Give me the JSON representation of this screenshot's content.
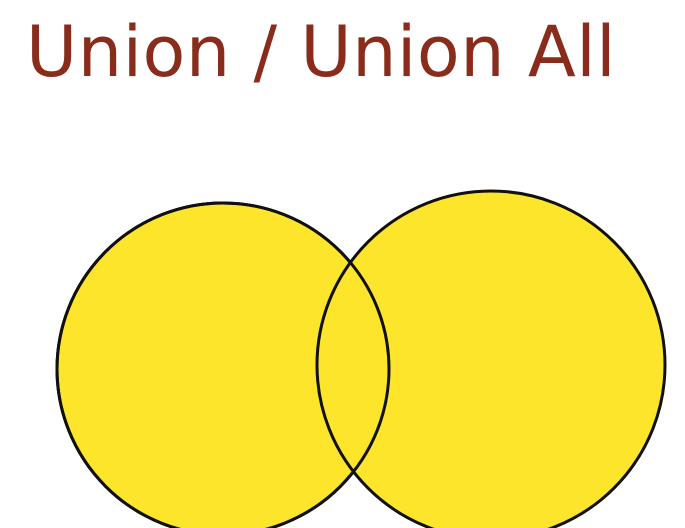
{
  "slide": {
    "title": "Union / Union All"
  },
  "colors": {
    "title_text": "#8a2c1c",
    "circle_fill": "#fde52c",
    "circle_outline": "#111111",
    "background": "#ffffff"
  },
  "diagram": {
    "type": "venn",
    "sets": [
      "left-set",
      "right-set"
    ],
    "highlight": "both sets and intersection filled"
  }
}
